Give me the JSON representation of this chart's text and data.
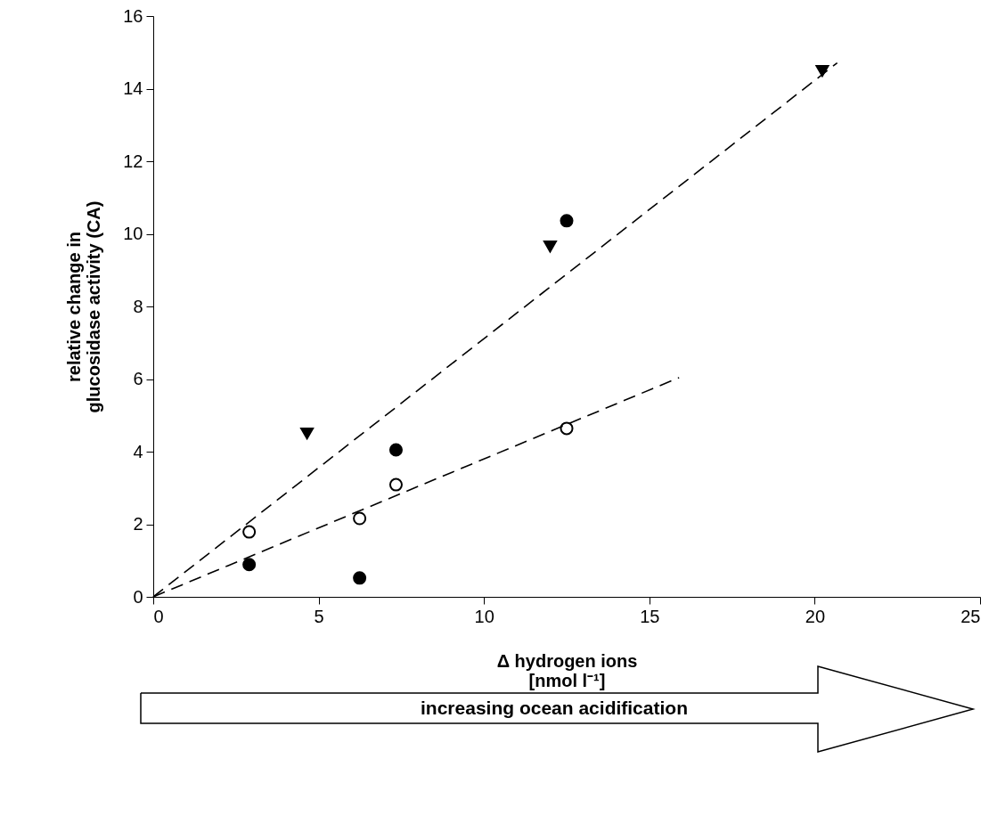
{
  "chart_data": {
    "type": "scatter",
    "xlabel": "Δ hydrogen ions\n[nmol l⁻¹]",
    "ylabel": "relative change in\nglucosidase activity (CA)",
    "xlim": [
      0,
      25
    ],
    "xticks": [
      0,
      5,
      10,
      15,
      20,
      25
    ],
    "ylim": [
      0,
      16
    ],
    "yticks": [
      0,
      2,
      4,
      6,
      8,
      10,
      12,
      14,
      16
    ],
    "grid": false,
    "annotations": [
      "increasing ocean acidification"
    ],
    "series": [
      {
        "type": "scatter",
        "marker": "circle",
        "color": "#ffffff",
        "x": [
          2.9,
          6.24,
          7.34,
          12.5
        ],
        "values": [
          1.79,
          2.16,
          3.09,
          4.64
        ]
      },
      {
        "type": "scatter",
        "marker": "circle",
        "color": "#000000",
        "x": [
          2.9,
          6.24,
          7.34,
          12.5
        ],
        "values": [
          0.89,
          0.52,
          4.05,
          10.36
        ]
      },
      {
        "type": "scatter",
        "marker": "triangle",
        "color": "#000000",
        "x": [
          4.65,
          12.0,
          20.23
        ],
        "values": [
          4.5,
          9.65,
          14.49
        ]
      },
      {
        "type": "line",
        "marker": "none",
        "line_style": "dashed",
        "color": "#000000",
        "x": [
          0,
          20.68
        ],
        "values": [
          0,
          14.71
        ]
      },
      {
        "type": "line",
        "marker": "none",
        "line_style": "dashed",
        "color": "#000000",
        "x": [
          0,
          15.9
        ],
        "values": [
          0,
          6.04
        ]
      }
    ]
  }
}
